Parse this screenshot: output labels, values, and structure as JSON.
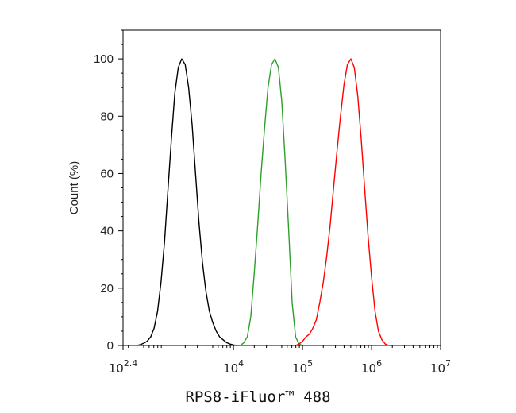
{
  "chart_data": {
    "type": "line",
    "xlabel": "RPS8-iFluor™ 488",
    "ylabel": "Count (%)",
    "x_scale": "log10",
    "xlim": [
      251.19,
      10000000
    ],
    "ylim": [
      0,
      110
    ],
    "x_ticks": [
      {
        "value": 251.19,
        "base": "10",
        "exp": "2.4"
      },
      {
        "value": 10000,
        "base": "10",
        "exp": "4"
      },
      {
        "value": 100000,
        "base": "10",
        "exp": "5"
      },
      {
        "value": 1000000,
        "base": "10",
        "exp": "6"
      },
      {
        "value": 10000000,
        "base": "10",
        "exp": "7"
      }
    ],
    "y_ticks": [
      0,
      20,
      40,
      60,
      80,
      100
    ],
    "series": [
      {
        "color": "#000000",
        "x": [
          398,
          447,
          501,
          562,
          631,
          708,
          794,
          891,
          1000,
          1122,
          1259,
          1413,
          1585,
          1778,
          1995,
          2239,
          2512,
          2818,
          3162,
          3548,
          3981,
          4467,
          5012,
          5623,
          6310,
          7079,
          7943,
          8913,
          10000,
          11220
        ],
        "y": [
          0,
          0.3,
          0.8,
          1.5,
          3,
          6,
          12,
          22,
          36,
          54,
          72,
          88,
          97,
          100,
          98,
          90,
          77,
          60,
          43,
          29,
          19,
          12,
          8,
          5,
          3,
          2,
          1,
          0.5,
          0.2,
          0
        ]
      },
      {
        "color": "#2ca02c",
        "x": [
          12589,
          14125,
          15849,
          17783,
          19953,
          22387,
          25119,
          28184,
          31623,
          35481,
          39811,
          44668,
          50119,
          56234,
          63096,
          70795,
          79433,
          89125,
          100000
        ],
        "y": [
          0,
          1,
          3,
          10,
          25,
          42,
          60,
          76,
          90,
          98,
          100,
          97,
          85,
          64,
          40,
          15,
          3,
          0.5,
          0
        ]
      },
      {
        "color": "#ff0000",
        "x": [
          79433,
          89125,
          100000,
          112202,
          125893,
          141254,
          158489,
          177828,
          199526,
          223872,
          251189,
          281838,
          316228,
          354813,
          398107,
          446684,
          501187,
          562341,
          630957,
          707946,
          794328,
          891251,
          1000000,
          1122018,
          1258925,
          1412538,
          1584893,
          1778279
        ],
        "y": [
          0,
          0.5,
          1.5,
          3,
          4,
          6,
          9,
          15,
          22,
          31,
          42,
          55,
          68,
          80,
          91,
          98,
          100,
          97,
          87,
          72,
          55,
          38,
          24,
          12,
          5,
          2,
          0.5,
          0
        ]
      }
    ]
  }
}
